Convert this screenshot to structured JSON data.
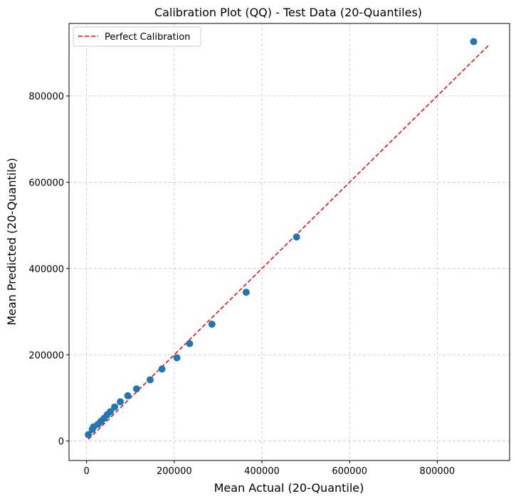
{
  "chart_data": {
    "type": "scatter",
    "title": "Calibration Plot (QQ) - Test Data (20-Quantiles)",
    "xlabel": "Mean Actual (20-Quantile)",
    "ylabel": "Mean Predicted (20-Quantile)",
    "xlim": [
      -40000,
      965000
    ],
    "ylim": [
      -45000,
      968000
    ],
    "xticks": [
      0,
      200000,
      400000,
      600000,
      800000
    ],
    "yticks": [
      0,
      200000,
      400000,
      600000,
      800000
    ],
    "xtick_labels": [
      "0",
      "200000",
      "400000",
      "600000",
      "800000"
    ],
    "ytick_labels": [
      "0",
      "200000",
      "400000",
      "600000",
      "800000"
    ],
    "grid": true,
    "legend_position": "upper-left",
    "series": [
      {
        "kind": "scatter",
        "color": "#1f77b4",
        "points": [
          [
            4000,
            15000
          ],
          [
            13000,
            27000
          ],
          [
            16000,
            33000
          ],
          [
            26000,
            39000
          ],
          [
            33000,
            46000
          ],
          [
            40000,
            53000
          ],
          [
            47000,
            61000
          ],
          [
            54000,
            68000
          ],
          [
            64000,
            79000
          ],
          [
            77000,
            91000
          ],
          [
            94000,
            105000
          ],
          [
            114000,
            121000
          ],
          [
            145000,
            142000
          ],
          [
            172000,
            167000
          ],
          [
            206000,
            193000
          ],
          [
            235000,
            226000
          ],
          [
            286000,
            271000
          ],
          [
            364000,
            345000
          ],
          [
            479000,
            473000
          ],
          [
            883000,
            926000
          ]
        ]
      },
      {
        "name": "Perfect Calibration",
        "kind": "line",
        "color": "#ff0000",
        "dash": "dashed",
        "points": [
          [
            4000,
            4000
          ],
          [
            920000,
            920000
          ]
        ]
      }
    ]
  }
}
